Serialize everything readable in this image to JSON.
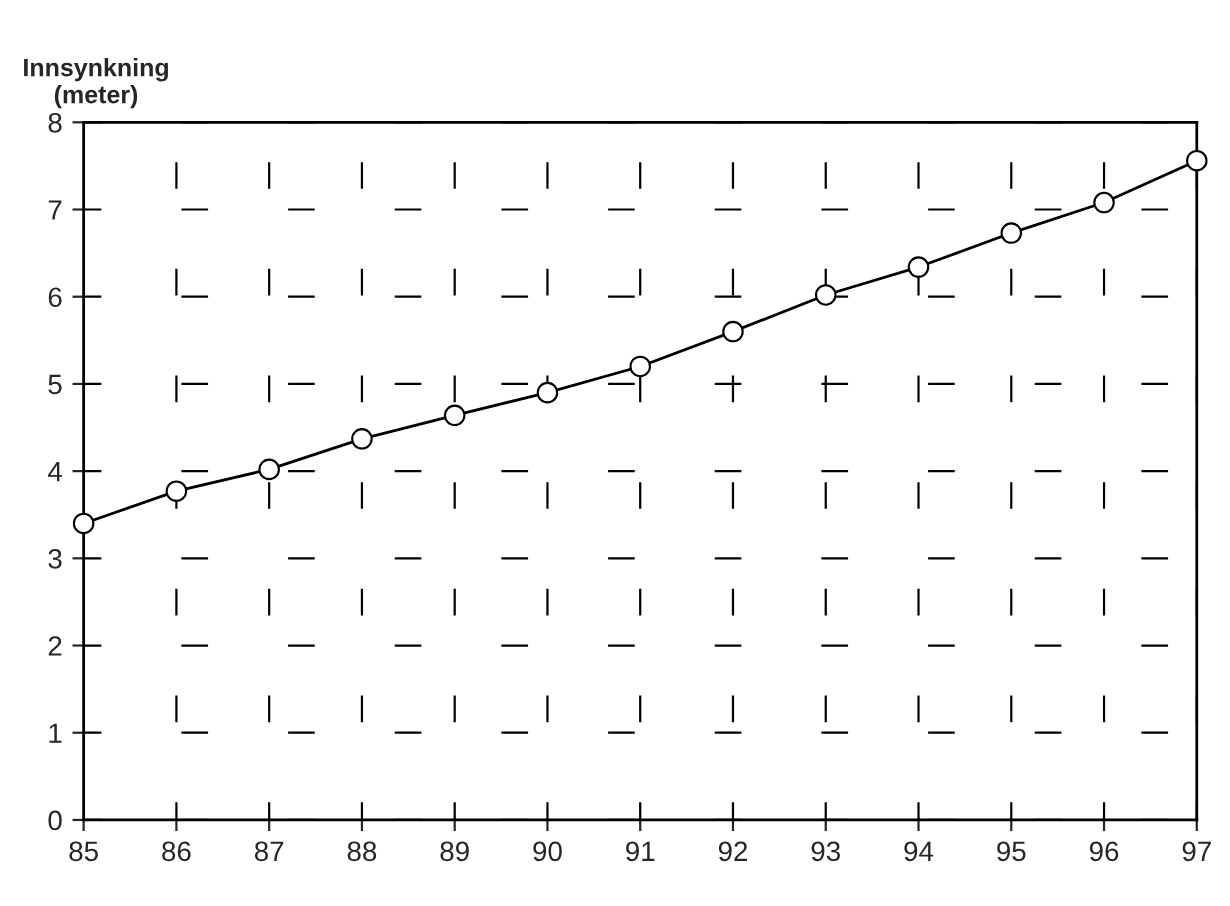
{
  "chart_data": {
    "type": "line",
    "ylabel": "Innsynkning\n(meter)",
    "x": [
      85,
      86,
      87,
      88,
      89,
      90,
      91,
      92,
      93,
      94,
      95,
      96,
      97
    ],
    "series": [
      {
        "color": "#000000",
        "values": [
          3.4,
          3.77,
          4.02,
          4.37,
          4.64,
          4.9,
          5.2,
          5.6,
          6.02,
          6.34,
          6.73,
          7.08,
          7.56
        ]
      }
    ],
    "xlim": [
      85,
      97
    ],
    "xticks": [
      85,
      86,
      87,
      88,
      89,
      90,
      91,
      92,
      93,
      94,
      95,
      96,
      97
    ],
    "ylim": [
      0,
      8
    ],
    "yticks": [
      0,
      1,
      2,
      3,
      4,
      5,
      6,
      7,
      8
    ],
    "grid": true,
    "marker": "circle",
    "line_style": "solid"
  }
}
